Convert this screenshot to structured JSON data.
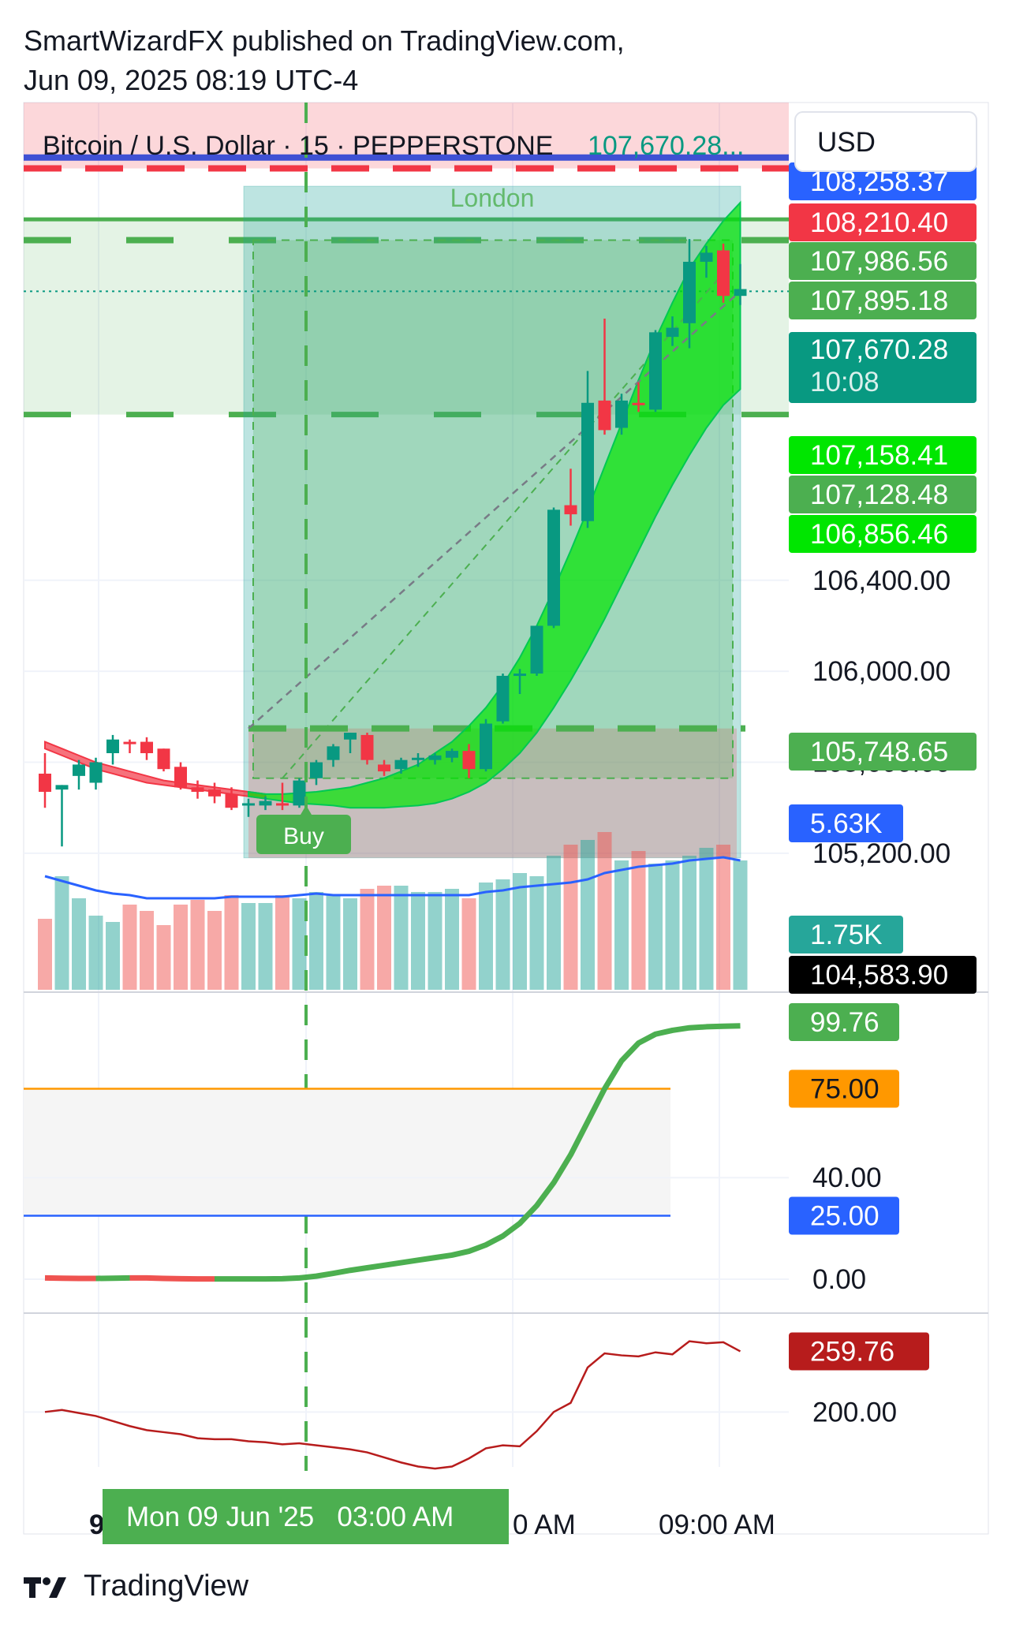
{
  "header": {
    "publisher_line": "SmartWizardFX published on TradingView.com,",
    "date_line": "Jun 09, 2025 08:19 UTC-4"
  },
  "symbol_bar": {
    "symbol": "Bitcoin / U.S. Dollar · 15 · PEPPERSTONE",
    "last_price": "107,670.28..."
  },
  "currency_button": "USD",
  "session_label": "London",
  "buy_label": "Buy",
  "footer": {
    "brand": "TradingView"
  },
  "colors": {
    "up": "#089981",
    "down": "#f23645",
    "green_label": "#4caf50",
    "bright_green": "#00e600",
    "blue_label": "#2962ff",
    "orange": "#ff9800",
    "dark_red": "#b71c1c",
    "teal": "#26a69a"
  },
  "price_labels": [
    {
      "text": "108,258.37",
      "color": "#2962ff",
      "price": 108258.37
    },
    {
      "text": "108,210.40",
      "color": "#f23645",
      "price": 108210.4
    },
    {
      "text": "107,986.56",
      "color": "#4caf50",
      "price": 107986.56
    },
    {
      "text": "107,895.18",
      "color": "#4caf50",
      "price": 107895.18
    },
    {
      "text": "107,670.28",
      "sub": "10:08",
      "color": "#089981",
      "price": 107670.28
    },
    {
      "text": "107,158.41",
      "color": "#00e600",
      "price": 107158.41
    },
    {
      "text": "107,128.48",
      "color": "#4caf50",
      "price": 107128.48
    },
    {
      "text": "106,856.46",
      "color": "#00e600",
      "price": 106856.46
    },
    {
      "text": "105,748.65",
      "color": "#4caf50",
      "price": 105748.65
    },
    {
      "text": "5.63K",
      "color": "#2962ff",
      "price": null
    },
    {
      "text": "1.75K",
      "color": "#26a69a",
      "price": null
    },
    {
      "text": "104,583.90",
      "color": "#000000",
      "price": 104583.9
    }
  ],
  "chart_data": [
    {
      "type": "candlestick",
      "title": "Bitcoin / U.S. Dollar · 15 · PEPPERSTONE",
      "y_ticks": [
        106400,
        106000,
        105600,
        105200
      ],
      "y_tick_labels": [
        "106,400.00",
        "106,000.00",
        "105,600.00",
        "105,200.00"
      ],
      "x_labels": [
        "9",
        "Mon 09 Jun '25   03:00 AM",
        "0 AM",
        "09:00 AM"
      ],
      "ylim": [
        104600,
        108500
      ],
      "grid": true,
      "candles": [
        {
          "o": 105550,
          "h": 105640,
          "l": 105400,
          "c": 105470
        },
        {
          "o": 105480,
          "h": 105500,
          "l": 105230,
          "c": 105500
        },
        {
          "o": 105540,
          "h": 105610,
          "l": 105480,
          "c": 105590
        },
        {
          "o": 105510,
          "h": 105620,
          "l": 105480,
          "c": 105600
        },
        {
          "o": 105640,
          "h": 105720,
          "l": 105590,
          "c": 105700
        },
        {
          "o": 105690,
          "h": 105700,
          "l": 105640,
          "c": 105680
        },
        {
          "o": 105690,
          "h": 105710,
          "l": 105610,
          "c": 105640
        },
        {
          "o": 105660,
          "h": 105660,
          "l": 105560,
          "c": 105570
        },
        {
          "o": 105580,
          "h": 105600,
          "l": 105480,
          "c": 105490
        },
        {
          "o": 105490,
          "h": 105520,
          "l": 105440,
          "c": 105470
        },
        {
          "o": 105480,
          "h": 105510,
          "l": 105420,
          "c": 105450
        },
        {
          "o": 105460,
          "h": 105490,
          "l": 105390,
          "c": 105400
        },
        {
          "o": 105420,
          "h": 105440,
          "l": 105360,
          "c": 105420
        },
        {
          "o": 105410,
          "h": 105450,
          "l": 105390,
          "c": 105430
        },
        {
          "o": 105420,
          "h": 105510,
          "l": 105390,
          "c": 105410
        },
        {
          "o": 105410,
          "h": 105530,
          "l": 105400,
          "c": 105520
        },
        {
          "o": 105530,
          "h": 105610,
          "l": 105500,
          "c": 105600
        },
        {
          "o": 105610,
          "h": 105680,
          "l": 105580,
          "c": 105670
        },
        {
          "o": 105700,
          "h": 105730,
          "l": 105640,
          "c": 105730
        },
        {
          "o": 105720,
          "h": 105730,
          "l": 105590,
          "c": 105610
        },
        {
          "o": 105590,
          "h": 105610,
          "l": 105540,
          "c": 105560
        },
        {
          "o": 105570,
          "h": 105620,
          "l": 105550,
          "c": 105610
        },
        {
          "o": 105610,
          "h": 105640,
          "l": 105580,
          "c": 105620
        },
        {
          "o": 105610,
          "h": 105640,
          "l": 105590,
          "c": 105630
        },
        {
          "o": 105620,
          "h": 105660,
          "l": 105600,
          "c": 105650
        },
        {
          "o": 105650,
          "h": 105680,
          "l": 105530,
          "c": 105570
        },
        {
          "o": 105570,
          "h": 105790,
          "l": 105560,
          "c": 105770
        },
        {
          "o": 105780,
          "h": 105990,
          "l": 105770,
          "c": 105980
        },
        {
          "o": 105980,
          "h": 106010,
          "l": 105900,
          "c": 105990
        },
        {
          "o": 105990,
          "h": 106200,
          "l": 105980,
          "c": 106200
        },
        {
          "o": 106200,
          "h": 106720,
          "l": 106190,
          "c": 106710
        },
        {
          "o": 106730,
          "h": 106890,
          "l": 106640,
          "c": 106690
        },
        {
          "o": 106660,
          "h": 107320,
          "l": 106630,
          "c": 107180
        },
        {
          "o": 107190,
          "h": 107550,
          "l": 107040,
          "c": 107060
        },
        {
          "o": 107070,
          "h": 107220,
          "l": 107040,
          "c": 107190
        },
        {
          "o": 107180,
          "h": 107270,
          "l": 107140,
          "c": 107170
        },
        {
          "o": 107150,
          "h": 107500,
          "l": 107140,
          "c": 107490
        },
        {
          "o": 107470,
          "h": 107560,
          "l": 107430,
          "c": 107510
        },
        {
          "o": 107530,
          "h": 107900,
          "l": 107420,
          "c": 107800
        },
        {
          "o": 107800,
          "h": 107870,
          "l": 107730,
          "c": 107840
        },
        {
          "o": 107850,
          "h": 107880,
          "l": 107620,
          "c": 107650
        },
        {
          "o": 107650,
          "h": 107790,
          "l": 107610,
          "c": 107680
        }
      ],
      "volume": [
        0.45,
        0.72,
        0.58,
        0.47,
        0.43,
        0.54,
        0.5,
        0.41,
        0.54,
        0.57,
        0.5,
        0.6,
        0.55,
        0.55,
        0.6,
        0.58,
        0.62,
        0.6,
        0.58,
        0.64,
        0.66,
        0.66,
        0.62,
        0.62,
        0.64,
        0.58,
        0.68,
        0.7,
        0.74,
        0.72,
        0.85,
        0.92,
        0.95,
        1.0,
        0.82,
        0.88,
        0.8,
        0.82,
        0.85,
        0.9,
        0.92,
        0.82
      ],
      "volume_ma": [
        0.72,
        0.69,
        0.66,
        0.63,
        0.61,
        0.6,
        0.58,
        0.58,
        0.58,
        0.58,
        0.58,
        0.59,
        0.59,
        0.59,
        0.59,
        0.6,
        0.61,
        0.6,
        0.6,
        0.6,
        0.6,
        0.6,
        0.6,
        0.6,
        0.6,
        0.6,
        0.62,
        0.63,
        0.65,
        0.66,
        0.67,
        0.68,
        0.7,
        0.74,
        0.76,
        0.78,
        0.79,
        0.8,
        0.82,
        0.83,
        0.84,
        0.82
      ],
      "ma_band_upper": [
        105690,
        105660,
        105630,
        105600,
        105580,
        105560,
        105540,
        105520,
        105510,
        105500,
        105490,
        105480,
        105470,
        105460,
        105460,
        105465,
        105470,
        105480,
        105490,
        105510,
        105530,
        105560,
        105590,
        105640,
        105690,
        105760,
        105840,
        105940,
        106060,
        106200,
        106360,
        106530,
        106710,
        106900,
        107090,
        107280,
        107460,
        107620,
        107770,
        107880,
        107980,
        108060
      ],
      "ma_band_lower": [
        105660,
        105630,
        105600,
        105570,
        105550,
        105530,
        105510,
        105500,
        105490,
        105480,
        105470,
        105460,
        105450,
        105440,
        105430,
        105420,
        105415,
        105410,
        105400,
        105400,
        105400,
        105405,
        105410,
        105420,
        105440,
        105470,
        105510,
        105570,
        105640,
        105730,
        105840,
        105960,
        106090,
        106230,
        106380,
        106530,
        106680,
        106820,
        106950,
        107070,
        107170,
        107240
      ],
      "levels": {
        "red_zone_top": 108500,
        "blue_line": 108258.37,
        "red_line": 108210.4,
        "green_line": 107986.56,
        "green_dashed": 107895.18,
        "dotted_last": 107670.28,
        "green_lower": 107128.48,
        "entry": 105748.65,
        "stop": 105180,
        "box_top": 107895.18,
        "box_bottom": 105530
      }
    },
    {
      "type": "line",
      "title": "",
      "y_ticks": [
        40,
        0
      ],
      "y_tick_labels": [
        "40.00",
        "0.00"
      ],
      "levels": [
        {
          "value": 75,
          "label": "75.00",
          "color": "#ff9800"
        },
        {
          "value": 25,
          "label": "25.00",
          "color": "#2962ff"
        }
      ],
      "last_label": "99.76",
      "ylim": [
        0,
        100
      ],
      "values": [
        0.5,
        0.4,
        0.3,
        0.3,
        0.4,
        0.5,
        0.5,
        0.3,
        0.2,
        0.1,
        0.1,
        0.1,
        0.1,
        0.1,
        0.2,
        0.5,
        1.2,
        2.3,
        3.5,
        4.5,
        5.5,
        6.5,
        7.5,
        8.5,
        9.5,
        11,
        13.5,
        17,
        22,
        29,
        38,
        49,
        62,
        75,
        86,
        93,
        96.5,
        98,
        99,
        99.4,
        99.6,
        99.76
      ]
    },
    {
      "type": "line",
      "title": "",
      "y_ticks": [
        200
      ],
      "y_tick_labels": [
        "200.00"
      ],
      "last_label": "259.76",
      "ylim": [
        130,
        290
      ],
      "values": [
        200,
        202,
        199,
        196,
        191,
        186,
        182,
        180,
        178,
        174,
        173,
        173,
        171,
        170,
        168,
        169,
        167,
        165,
        163,
        160,
        155,
        150,
        146,
        144,
        146,
        154,
        164,
        167,
        166,
        181,
        200,
        209,
        244,
        258,
        256,
        255,
        259,
        257,
        270,
        268,
        269,
        260
      ]
    }
  ]
}
